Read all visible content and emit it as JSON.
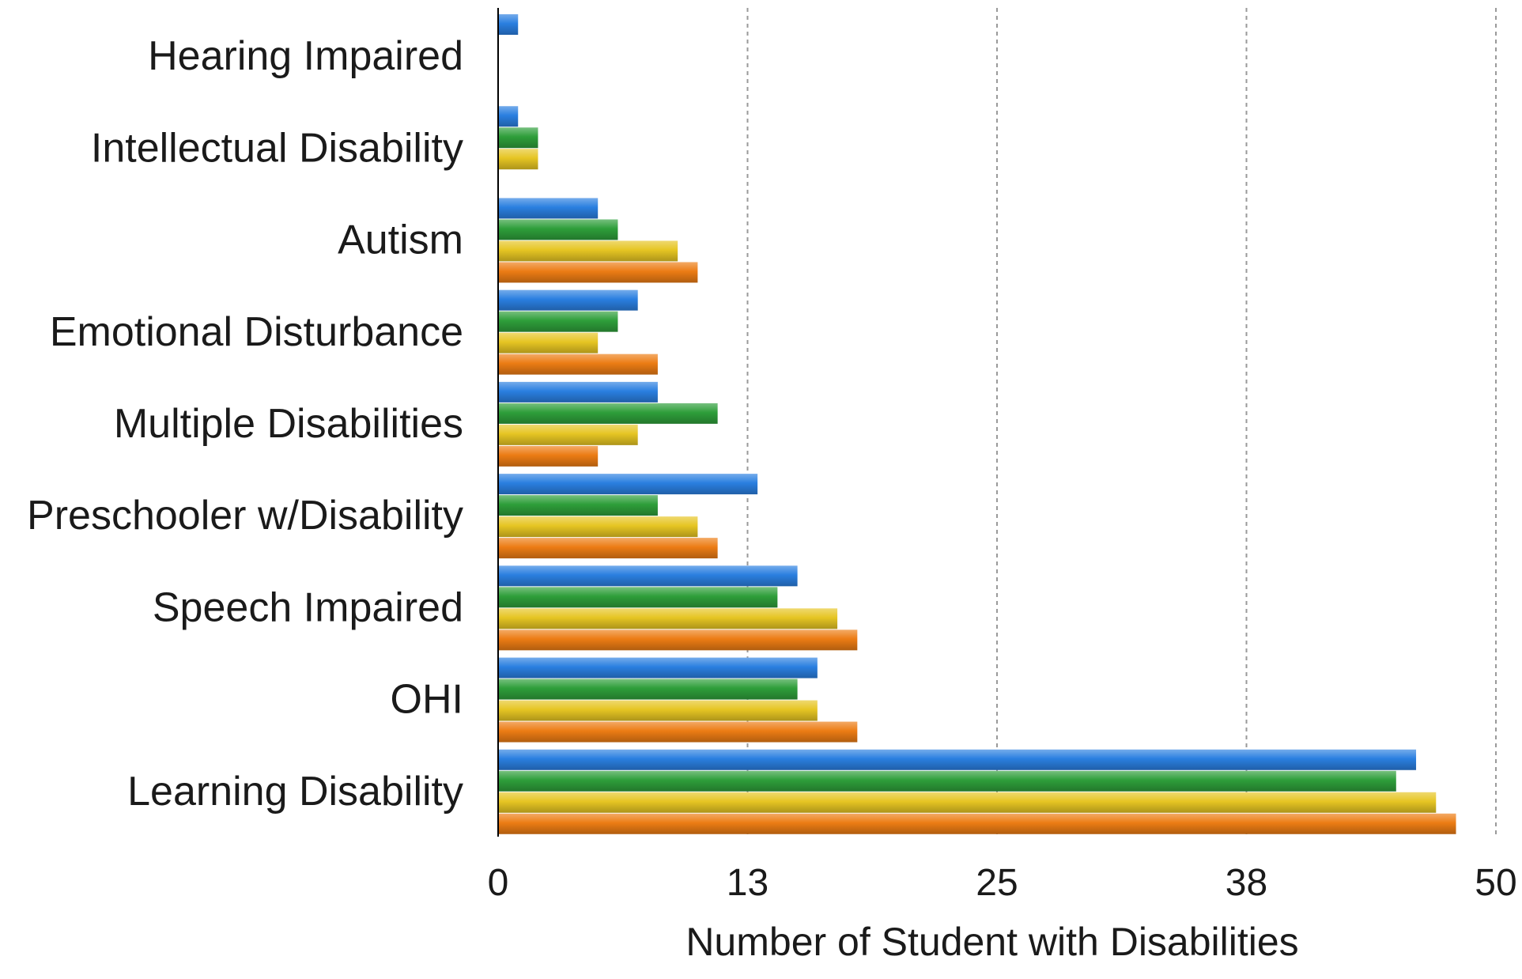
{
  "chart_data": {
    "type": "bar",
    "orientation": "horizontal",
    "title": "",
    "xlabel": "Number of Student with Disabilities",
    "ylabel": "",
    "xlim": [
      0,
      50
    ],
    "xticks": [
      "0",
      "13",
      "25",
      "38",
      "50"
    ],
    "xtick_values": [
      0,
      12.5,
      25,
      37.5,
      50
    ],
    "grid": "vertical dotted",
    "legend": "none",
    "categories": [
      "Hearing Impaired",
      "Intellectual Disability",
      "Autism",
      "Emotional Disturbance",
      "Multiple Disabilities",
      "Preschooler w/Disability",
      "Speech Impaired",
      "OHI",
      "Learning Disability"
    ],
    "series": [
      {
        "color": "#2a7fe0",
        "values": [
          1,
          1,
          5,
          7,
          8,
          13,
          15,
          16,
          46
        ]
      },
      {
        "color": "#2e9e3a",
        "values": [
          0,
          2,
          6,
          6,
          11,
          8,
          14,
          15,
          45
        ]
      },
      {
        "color": "#e6c523",
        "values": [
          0,
          2,
          9,
          5,
          7,
          10,
          17,
          16,
          47
        ]
      },
      {
        "color": "#ec7c14",
        "values": [
          0,
          0,
          10,
          8,
          5,
          11,
          18,
          18,
          48
        ]
      }
    ]
  }
}
